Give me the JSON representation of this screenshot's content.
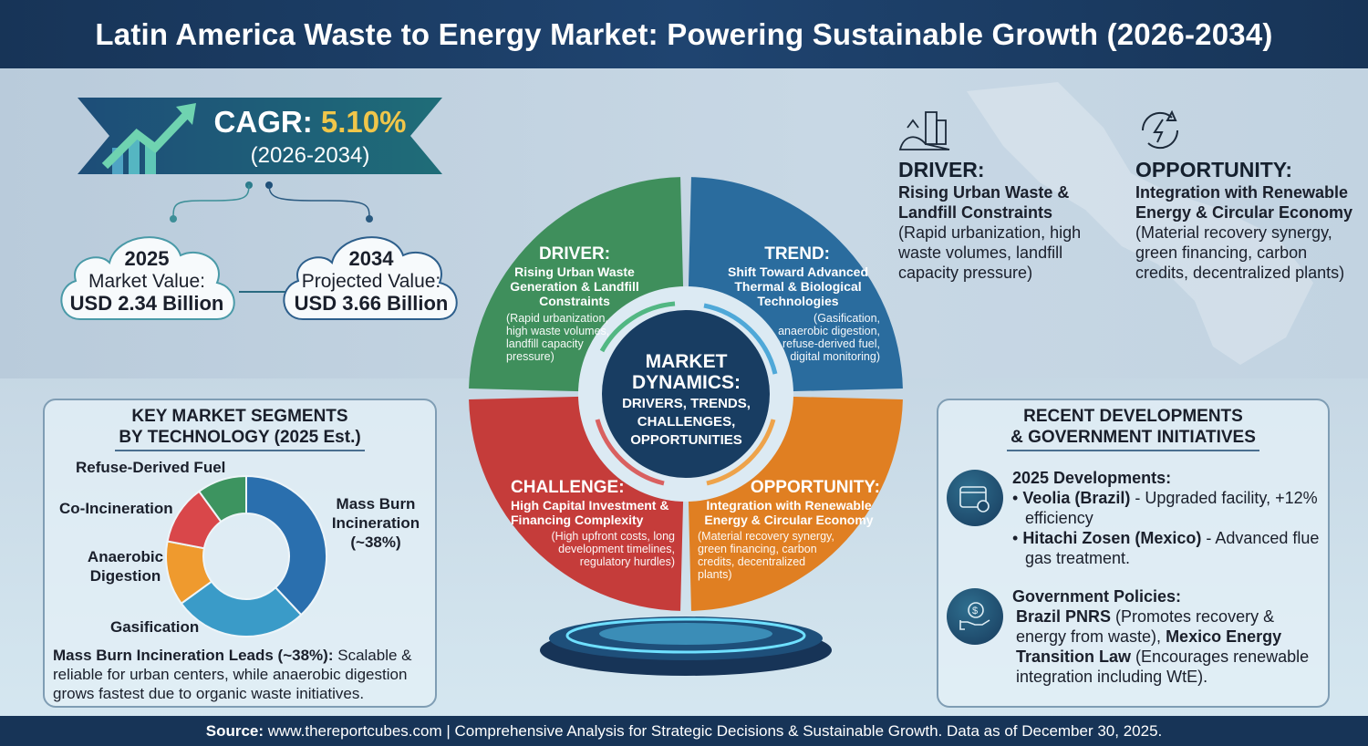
{
  "title": "Latin America Waste to Energy Market: Powering Sustainable Growth (2026-2034)",
  "cagr": {
    "label": "CAGR:",
    "value": "5.10%",
    "period": "(2026-2034)",
    "icon": "growth-arrow-icon"
  },
  "values": [
    {
      "year": "2025",
      "label": "Market Value:",
      "amount": "USD 2.34 Billion"
    },
    {
      "year": "2034",
      "label": "Projected Value:",
      "amount": "USD 3.66 Billion"
    }
  ],
  "side_driver": {
    "heading": "DRIVER:",
    "bold": "Rising Urban Waste & Landfill Constraints",
    "text": "(Rapid urbanization, high waste volumes, landfill capacity pressure)",
    "icon": "city-waste-icon"
  },
  "side_opportunity": {
    "heading": "OPPORTUNITY:",
    "bold": "Integration with Renewable Energy & Circular Economy",
    "text": "(Material recovery synergy, green financing, carbon credits, decentralized plants)",
    "icon": "energy-cycle-icon"
  },
  "wheel": {
    "center": {
      "title": "MARKET DYNAMICS:",
      "subtitle": "DRIVERS, TRENDS, CHALLENGES, OPPORTUNITIES"
    },
    "driver": {
      "heading": "DRIVER:",
      "subtitle": "Rising Urban Waste Generation & Landfill Constraints",
      "detail": "(Rapid urbanization, high waste volumes, landfill capacity pressure)",
      "color": "#3f8f5c"
    },
    "trend": {
      "heading": "TREND:",
      "subtitle": "Shift Toward Advanced Thermal & Biological Technologies",
      "detail": "(Gasification, anaerobic digestion, refuse-derived fuel, digital monitoring)",
      "color": "#2a6c9e"
    },
    "challenge": {
      "heading": "CHALLENGE:",
      "subtitle": "High Capital Investment & Financing Complexity",
      "detail": "(High upfront costs, long development timelines, regulatory hurdles)",
      "color": "#c53c3a"
    },
    "opportunity": {
      "heading": "OPPORTUNITY:",
      "subtitle": "Integration with Renewable Energy & Circular Economy",
      "detail": "(Material recovery synergy, green financing, carbon credits, decentralized plants)",
      "color": "#e07f22"
    }
  },
  "segments": {
    "title_line1": "KEY MARKET SEGMENTS",
    "title_line2": "BY TECHNOLOGY (2025 Est.)",
    "labels": {
      "rdf": "Refuse-Derived Fuel",
      "coinc": "Co-Incineration",
      "anaerobic": "Anaerobic Digestion",
      "gasification": "Gasification",
      "massburn": "Mass Burn Incineration",
      "massburn_pct": "(~38%)"
    },
    "summary_bold": "Mass Burn Incineration Leads (~38%):",
    "summary_text": "Scalable & reliable for urban centers, while anaerobic digestion grows fastest due to organic waste initiatives."
  },
  "chart_data": {
    "type": "pie",
    "title": "KEY MARKET SEGMENTS BY TECHNOLOGY (2025 Est.)",
    "categories": [
      "Mass Burn Incineration",
      "Gasification",
      "Anaerobic Digestion",
      "Co-Incineration",
      "Refuse-Derived Fuel"
    ],
    "values": [
      38,
      27,
      13,
      12,
      10
    ],
    "unit": "%",
    "colors": [
      "#2a6fae",
      "#3a9bc8",
      "#ef9a2e",
      "#d9474a",
      "#3d9460"
    ],
    "donut": true
  },
  "developments": {
    "title_line1": "RECENT DEVELOPMENTS",
    "title_line2": "& GOVERNMENT INITIATIVES",
    "dev_heading": "2025 Developments:",
    "items": [
      {
        "bold": "Veolia (Brazil)",
        "text": " - Upgraded facility, +12% efficiency"
      },
      {
        "bold": "Hitachi Zosen (Mexico)",
        "text": " - Advanced flue gas treatment."
      }
    ],
    "policy_heading": "Government Policies:",
    "policy": [
      {
        "bold": "Brazil PNRS",
        "text": " (Promotes recovery & energy from waste), "
      },
      {
        "bold": "Mexico Energy Transition Law",
        "text": " (Encourages renewable integration including WtE)."
      }
    ]
  },
  "footer": {
    "label": "Source:",
    "text": " www.thereportcubes.com | Comprehensive Analysis for Strategic Decisions & Sustainable Growth. Data as of December 30, 2025."
  }
}
